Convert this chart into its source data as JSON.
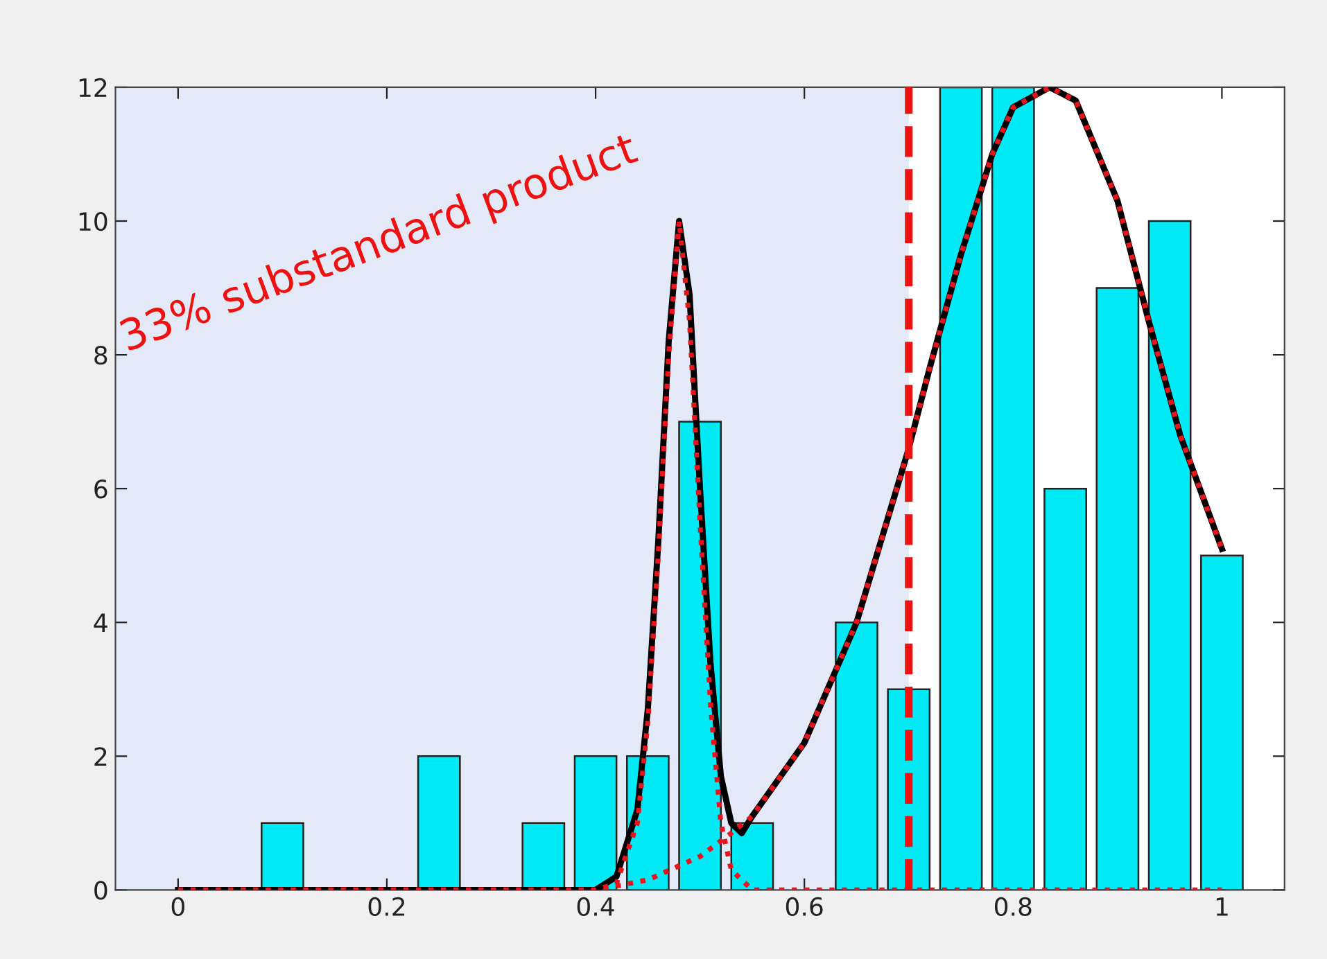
{
  "chart_data": {
    "type": "bar",
    "xlim": [
      -0.06,
      1.06
    ],
    "ylim": [
      0,
      12
    ],
    "xticks": [
      0,
      0.2,
      0.4,
      0.6,
      0.8,
      1
    ],
    "yticks": [
      0,
      2,
      4,
      6,
      8,
      10,
      12
    ],
    "grid": false,
    "legend": false,
    "series": [
      {
        "color": "#00eaf6",
        "x": [
          0.1,
          0.25,
          0.35,
          0.4,
          0.45,
          0.5,
          0.55,
          0.65,
          0.7,
          0.75,
          0.8,
          0.85,
          0.9,
          0.95,
          1.0
        ],
        "values": [
          1,
          2,
          1,
          2,
          2,
          7,
          1,
          4,
          3,
          12,
          12,
          6,
          9,
          10,
          5
        ]
      },
      {
        "type": "line",
        "color": "#000000",
        "line_style": "solid",
        "x": [
          0,
          0.4,
          0.42,
          0.44,
          0.45,
          0.46,
          0.47,
          0.48,
          0.49,
          0.5,
          0.51,
          0.52,
          0.53,
          0.54,
          0.55,
          0.6,
          0.65,
          0.7,
          0.72,
          0.75,
          0.78,
          0.8,
          0.835,
          0.86,
          0.9,
          0.93,
          0.96,
          1.0
        ],
        "values": [
          0,
          0,
          0.2,
          1.2,
          2.7,
          5.2,
          8.2,
          10,
          8.9,
          6.0,
          3.4,
          1.7,
          1.0,
          0.85,
          1.1,
          2.2,
          4.0,
          6.6,
          7.8,
          9.5,
          11.0,
          11.7,
          12,
          11.8,
          10.3,
          8.5,
          6.8,
          5.1
        ]
      },
      {
        "type": "line",
        "color": "#e8141c",
        "line_style": "dotted",
        "x": [
          0,
          0.4,
          0.42,
          0.44,
          0.45,
          0.46,
          0.47,
          0.48,
          0.49,
          0.5,
          0.51,
          0.52,
          0.53,
          0.55,
          1.0
        ],
        "values": [
          0,
          0,
          0.1,
          1,
          2.5,
          5,
          8,
          10,
          8.5,
          5.5,
          2.8,
          1.0,
          0.3,
          0,
          0
        ]
      },
      {
        "type": "line",
        "color": "#e8141c",
        "line_style": "dotted",
        "x": [
          0,
          0.4,
          0.45,
          0.5,
          0.53,
          0.55,
          0.6,
          0.65,
          0.7,
          0.72,
          0.75,
          0.78,
          0.8,
          0.835,
          0.86,
          0.9,
          0.93,
          0.96,
          1.0
        ],
        "values": [
          0,
          0,
          0.15,
          0.5,
          0.85,
          1.1,
          2.2,
          4.0,
          6.6,
          7.8,
          9.5,
          11.0,
          11.7,
          12,
          11.8,
          10.3,
          8.5,
          6.8,
          5.1
        ]
      }
    ],
    "bands": [
      {
        "axis": "x",
        "from": -0.06,
        "to": 0.7,
        "color": "#e3e9f6"
      }
    ],
    "ref_lines": [
      {
        "axis": "x",
        "value": 0.7,
        "color": "#ee1111",
        "line_style": "dashed"
      }
    ],
    "annotations": [
      "33% substandard product"
    ]
  }
}
